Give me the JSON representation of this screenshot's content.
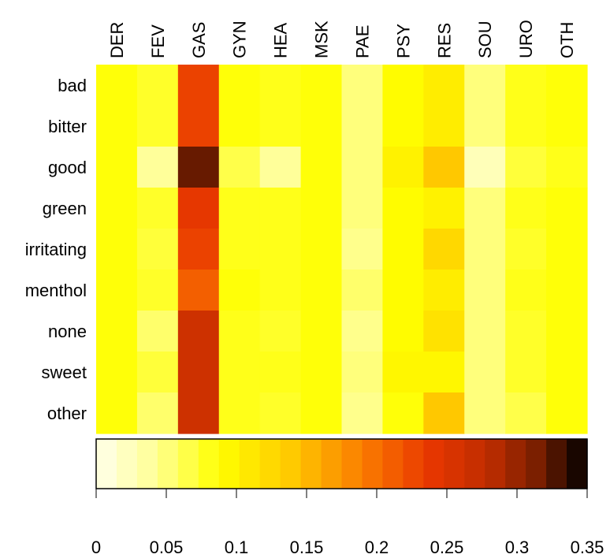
{
  "chart_data": {
    "type": "heatmap",
    "title": "",
    "xlabel": "",
    "ylabel": "",
    "columns": [
      "DER",
      "FEV",
      "GAS",
      "GYN",
      "HEA",
      "MSK",
      "PAE",
      "PSY",
      "RES",
      "SOU",
      "URO",
      "OTH"
    ],
    "rows": [
      "bad",
      "bitter",
      "good",
      "green",
      "irritating",
      "menthol",
      "none",
      "sweet",
      "other"
    ],
    "values": [
      [
        0.085,
        0.075,
        0.23,
        0.085,
        0.08,
        0.085,
        0.05,
        0.09,
        0.105,
        0.05,
        0.08,
        0.085
      ],
      [
        0.085,
        0.075,
        0.23,
        0.085,
        0.08,
        0.085,
        0.05,
        0.09,
        0.105,
        0.05,
        0.08,
        0.085
      ],
      [
        0.085,
        0.04,
        0.32,
        0.065,
        0.04,
        0.085,
        0.05,
        0.1,
        0.14,
        0.025,
        0.07,
        0.08
      ],
      [
        0.085,
        0.075,
        0.24,
        0.08,
        0.08,
        0.085,
        0.05,
        0.09,
        0.1,
        0.05,
        0.08,
        0.085
      ],
      [
        0.085,
        0.07,
        0.23,
        0.08,
        0.08,
        0.085,
        0.045,
        0.09,
        0.125,
        0.05,
        0.075,
        0.085
      ],
      [
        0.085,
        0.075,
        0.21,
        0.085,
        0.08,
        0.085,
        0.055,
        0.09,
        0.105,
        0.05,
        0.08,
        0.085
      ],
      [
        0.085,
        0.055,
        0.265,
        0.08,
        0.075,
        0.085,
        0.045,
        0.09,
        0.115,
        0.05,
        0.075,
        0.085
      ],
      [
        0.085,
        0.07,
        0.265,
        0.08,
        0.08,
        0.085,
        0.05,
        0.095,
        0.095,
        0.05,
        0.075,
        0.085
      ],
      [
        0.085,
        0.055,
        0.265,
        0.08,
        0.075,
        0.085,
        0.045,
        0.085,
        0.14,
        0.05,
        0.065,
        0.085
      ]
    ],
    "colorbar": {
      "ticks": [
        0,
        0.05,
        0.1,
        0.15,
        0.2,
        0.25,
        0.3,
        0.35
      ],
      "tick_labels": [
        "0",
        "0.05",
        "0.1",
        "0.15",
        "0.2",
        "0.25",
        "0.3",
        "0.35"
      ],
      "range": [
        0,
        0.35
      ],
      "steps": 24
    },
    "colormap": "heat (white-yellow-orange-red-black)",
    "grid": false,
    "legend": "colorbar below heatmap"
  }
}
